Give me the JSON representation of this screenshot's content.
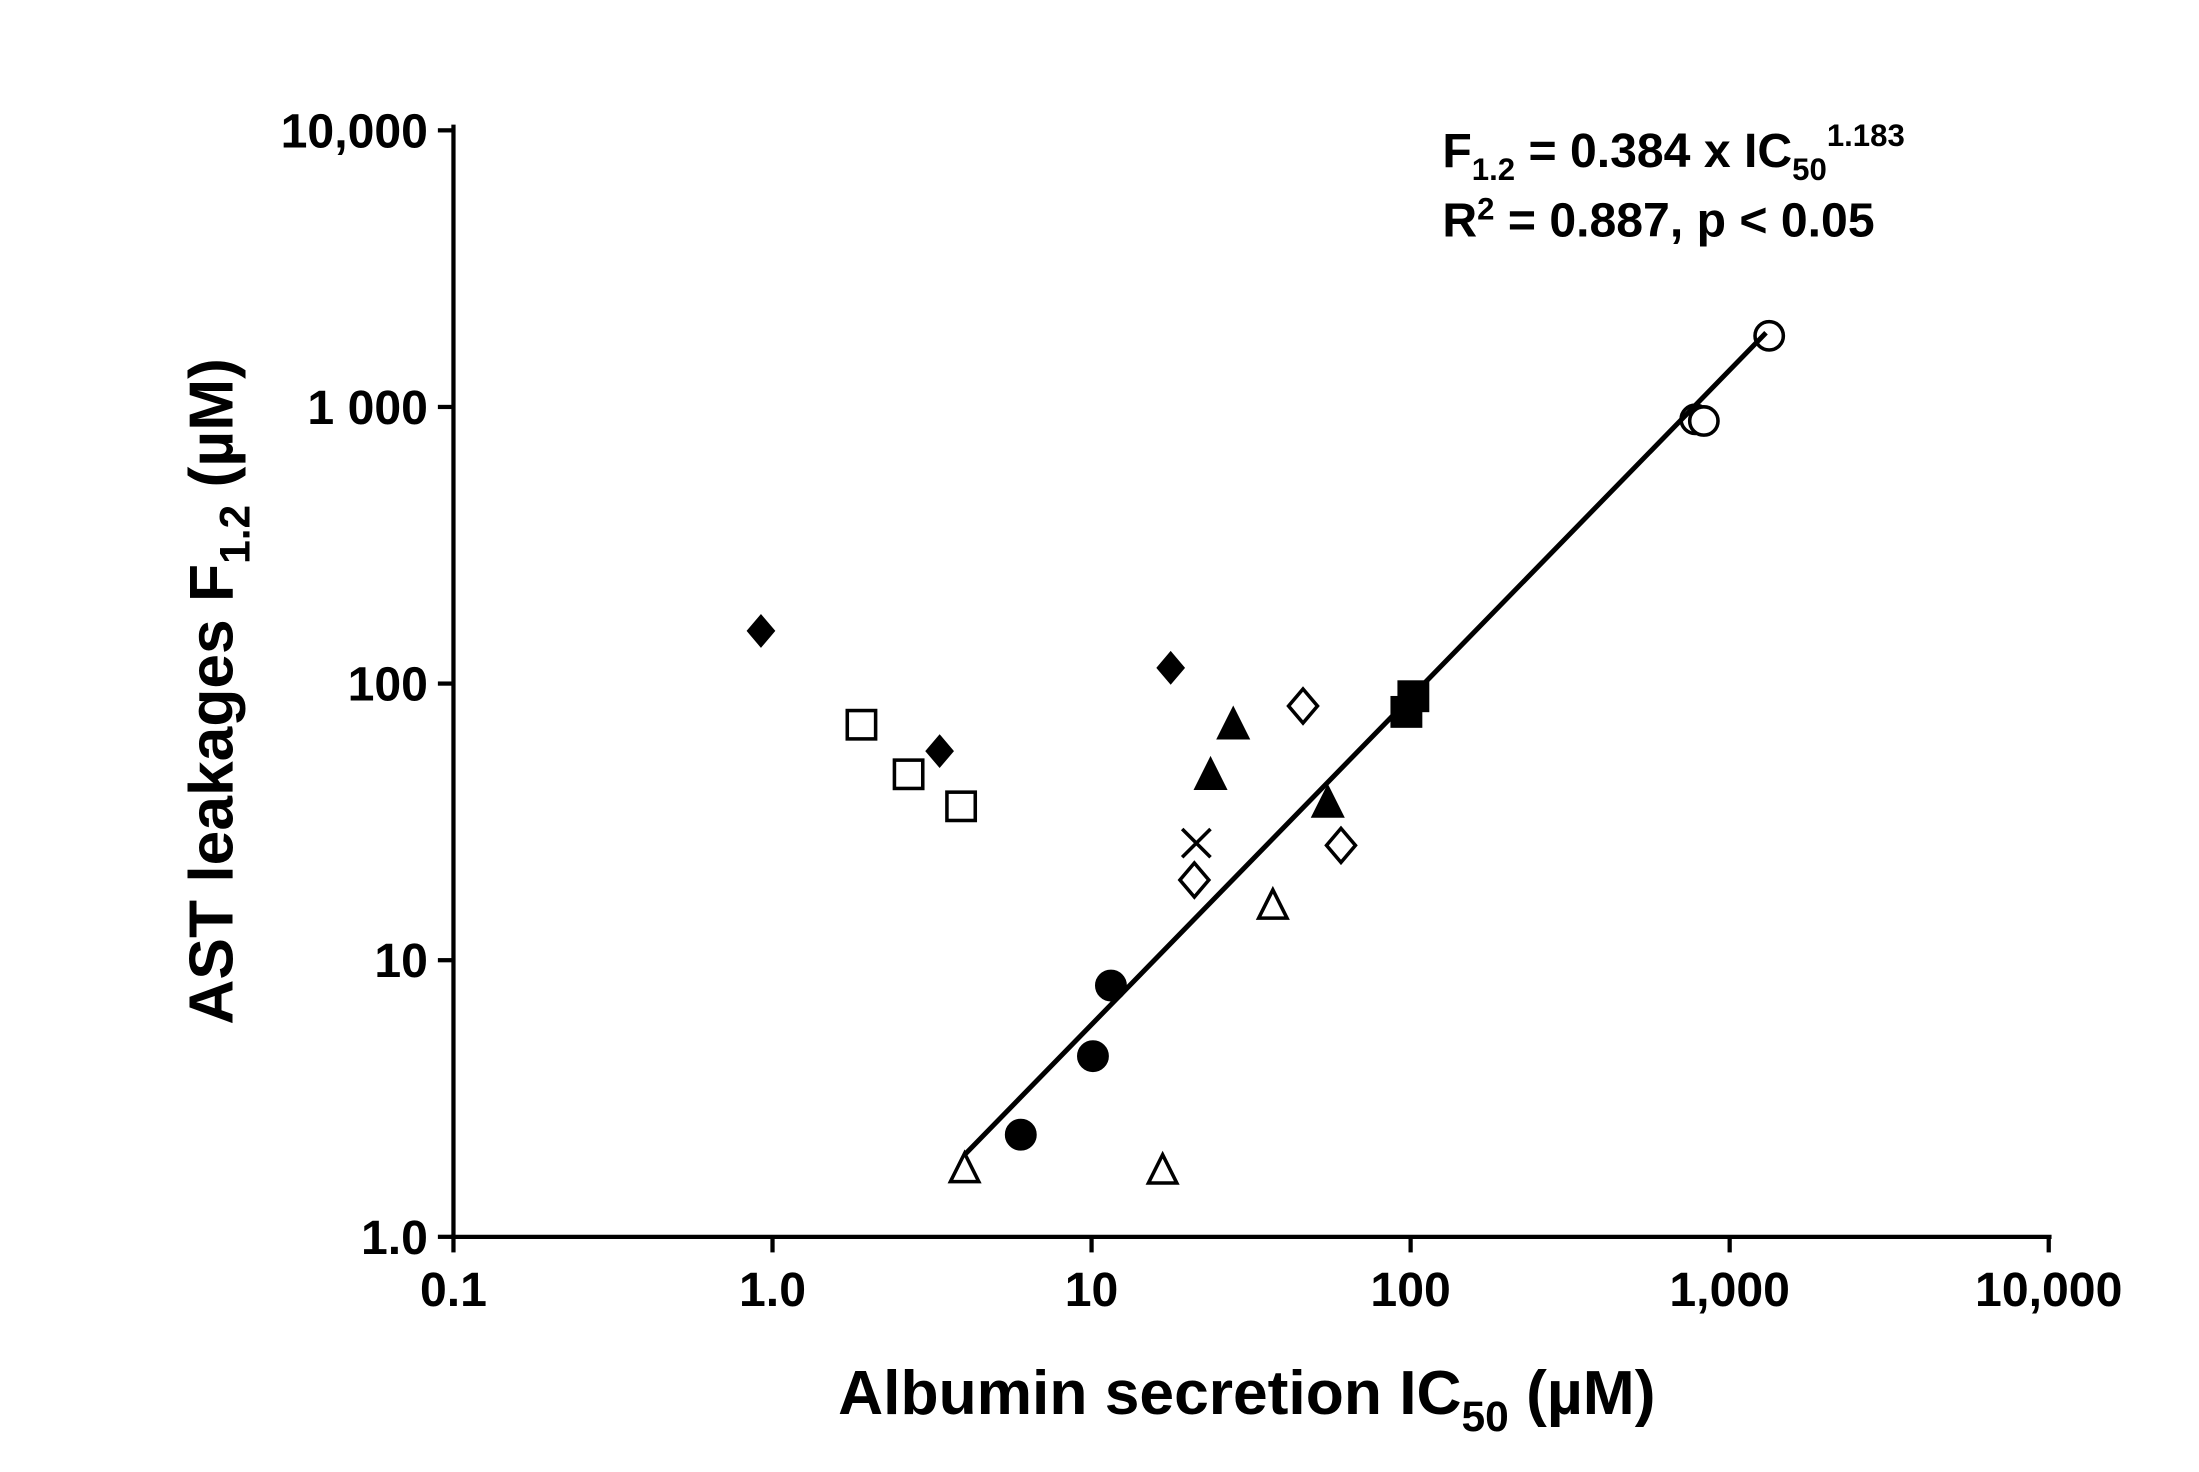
{
  "chart_data": {
    "type": "scatter",
    "xscale": "log",
    "yscale": "log",
    "xlim": [
      0.1,
      10000
    ],
    "ylim": [
      1.0,
      10000
    ],
    "xlabel": {
      "main": "Albumin secretion IC",
      "sub": "50",
      "unit": " (µM)"
    },
    "ylabel": {
      "main": "AST leakages F",
      "sub": "1.2",
      "unit": " (µM)"
    },
    "xticks": [
      {
        "v": 0.1,
        "label": "0.1"
      },
      {
        "v": 1,
        "label": "1.0"
      },
      {
        "v": 10,
        "label": "10"
      },
      {
        "v": 100,
        "label": "100"
      },
      {
        "v": 1000,
        "label": "1,000"
      },
      {
        "v": 10000,
        "label": "10,000"
      }
    ],
    "yticks": [
      {
        "v": 1,
        "label": "1.0"
      },
      {
        "v": 10,
        "label": "10"
      },
      {
        "v": 100,
        "label": "100"
      },
      {
        "v": 1000,
        "label": "1 000"
      },
      {
        "v": 10000,
        "label": "10,000"
      }
    ],
    "annotation": {
      "line1_a": "F",
      "line1_a_sub": "1.2",
      "line1_b": " = 0.384 x IC",
      "line1_b_sub": "50",
      "line1_sup": "1.183",
      "line2_a": "R",
      "line2_sup": "2",
      "line2_b": " = 0.887, p < 0.05"
    },
    "fit": {
      "a": 0.384,
      "b": 1.183,
      "x_range": [
        4.0,
        1300
      ]
    },
    "series": [
      {
        "marker": "diamond-filled",
        "points": [
          [
            0.92,
            155
          ],
          [
            3.34,
            57
          ],
          [
            17.7,
            114
          ]
        ]
      },
      {
        "marker": "square-open",
        "points": [
          [
            1.9,
            71
          ],
          [
            2.67,
            47
          ],
          [
            3.9,
            36
          ]
        ]
      },
      {
        "marker": "triangle-filled",
        "points": [
          [
            27.8,
            70
          ],
          [
            23.6,
            46
          ],
          [
            55,
            36.5
          ]
        ]
      },
      {
        "marker": "diamond-open",
        "points": [
          [
            46,
            83
          ],
          [
            21,
            19.5
          ],
          [
            60.5,
            26
          ]
        ]
      },
      {
        "marker": "cross",
        "points": [
          [
            21.3,
            26.5
          ]
        ]
      },
      {
        "marker": "triangle-open",
        "points": [
          [
            4.0,
            1.74
          ],
          [
            16.7,
            1.72
          ],
          [
            37,
            15.6
          ]
        ]
      },
      {
        "marker": "circle-filled",
        "points": [
          [
            6.0,
            2.34
          ],
          [
            10.1,
            4.5
          ],
          [
            11.5,
            8.1
          ]
        ]
      },
      {
        "marker": "square-filled",
        "points": [
          [
            102,
            90
          ],
          [
            97,
            79
          ]
        ]
      },
      {
        "marker": "circle-open",
        "points": [
          [
            780,
            902
          ],
          [
            830,
            890
          ],
          [
            1330,
            1808
          ]
        ]
      }
    ]
  }
}
